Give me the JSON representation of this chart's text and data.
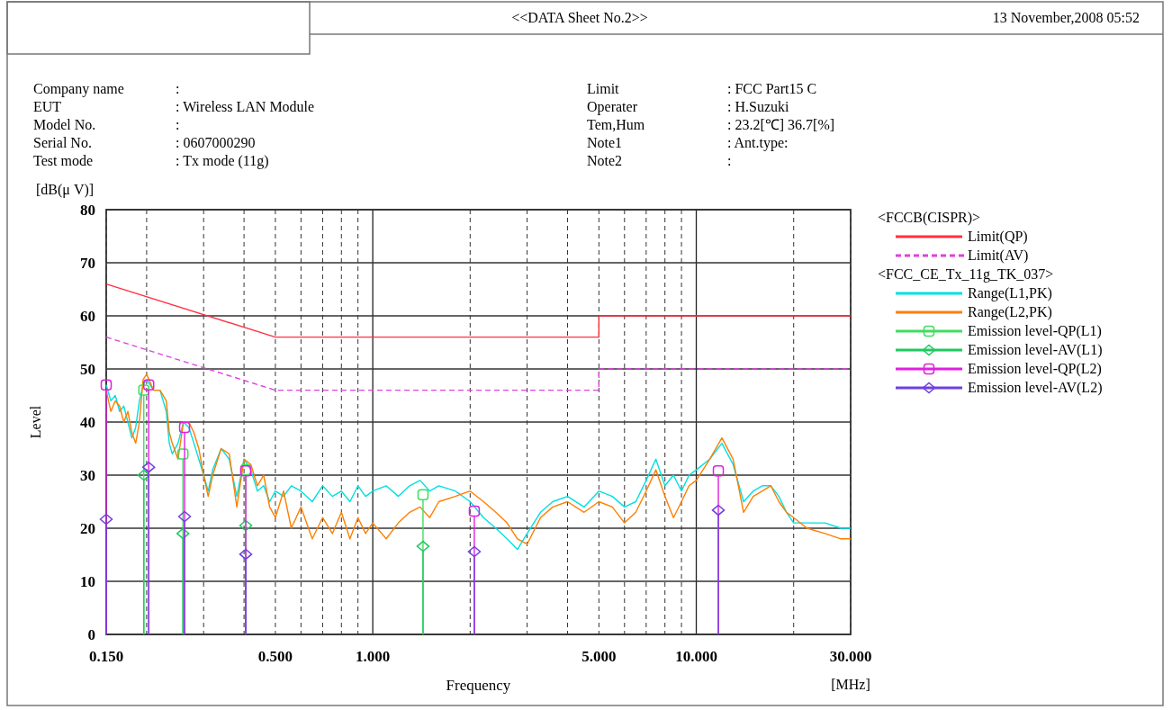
{
  "chart_data": {
    "type": "line",
    "title": "<<DATA Sheet No.2>>",
    "xlabel": "Frequency",
    "ylabel": "Level",
    "legend_title": "<FCCB(CISPR)>",
    "annotations": [
      "13 November,2008 05:52",
      "Company name",
      ":",
      "EUT",
      ": Wireless LAN Module",
      "Model No.",
      ":",
      "Serial No.",
      ": 0607000290",
      "Test mode",
      ": Tx mode (11g)",
      "Limit",
      ": FCC Part15 C",
      "Operater",
      ": H.Suzuki",
      "Tem,Hum",
      ": 23.2[℃] 36.7[%]",
      "Note1",
      ": Ant.type:",
      "Note2",
      ":",
      "[dB(μ V)]",
      "[MHz]",
      "<FCC_CE_Tx_11g_TK_037>"
    ],
    "log": "x",
    "grid": true,
    "legend": "right",
    "xlim": [
      0.15,
      30
    ],
    "xticks": [
      {
        "value": 0.15,
        "label": "0.150"
      },
      {
        "value": 0.2,
        "label": null
      },
      {
        "value": 0.3,
        "label": null
      },
      {
        "value": 0.4,
        "label": null
      },
      {
        "value": 0.5,
        "label": "0.500"
      },
      {
        "value": 0.6,
        "label": null
      },
      {
        "value": 0.7,
        "label": null
      },
      {
        "value": 0.8,
        "label": null
      },
      {
        "value": 0.9,
        "label": null
      },
      {
        "value": 1,
        "label": "1.000"
      },
      {
        "value": 2,
        "label": null
      },
      {
        "value": 3,
        "label": null
      },
      {
        "value": 4,
        "label": null
      },
      {
        "value": 5,
        "label": "5.000"
      },
      {
        "value": 6,
        "label": null
      },
      {
        "value": 7,
        "label": null
      },
      {
        "value": 8,
        "label": null
      },
      {
        "value": 9,
        "label": null
      },
      {
        "value": 10,
        "label": "10.000"
      },
      {
        "value": 20,
        "label": null
      },
      {
        "value": 30,
        "label": "30.000"
      }
    ],
    "ylim": [
      0,
      80
    ],
    "yticks": [
      0,
      10,
      20,
      30,
      40,
      50,
      60,
      70,
      80
    ],
    "series": [
      {
        "name": "Limit(QP)",
        "type": "line",
        "color": "#ff3040",
        "line_style": "solid",
        "marker": "none",
        "x": [
          0.15,
          0.5,
          5,
          5,
          30
        ],
        "values": [
          66,
          56,
          56,
          60,
          60
        ]
      },
      {
        "name": "Limit(AV)",
        "type": "line",
        "color": "#e040e0",
        "line_style": "dashed",
        "marker": "none",
        "x": [
          0.15,
          0.5,
          5,
          5,
          30
        ],
        "values": [
          56,
          46,
          46,
          50,
          50
        ]
      },
      {
        "name": "Range(L1,PK)",
        "type": "line",
        "color": "#00e0e0",
        "line_style": "solid",
        "marker": "none",
        "x": [
          0.15,
          0.155,
          0.16,
          0.165,
          0.17,
          0.175,
          0.18,
          0.185,
          0.19,
          0.195,
          0.2,
          0.21,
          0.22,
          0.23,
          0.235,
          0.24,
          0.25,
          0.26,
          0.27,
          0.28,
          0.29,
          0.3,
          0.31,
          0.32,
          0.34,
          0.36,
          0.38,
          0.4,
          0.42,
          0.44,
          0.46,
          0.48,
          0.5,
          0.53,
          0.56,
          0.6,
          0.65,
          0.7,
          0.75,
          0.8,
          0.85,
          0.9,
          0.95,
          1,
          1.1,
          1.2,
          1.3,
          1.4,
          1.5,
          1.6,
          1.8,
          2,
          2.2,
          2.4,
          2.6,
          2.8,
          3,
          3.3,
          3.6,
          4,
          4.5,
          5,
          5.5,
          6,
          6.5,
          7,
          7.5,
          8,
          8.5,
          9,
          9.5,
          10,
          11,
          12,
          13,
          14,
          15,
          16,
          17,
          18,
          19,
          20,
          22,
          25,
          28,
          30
        ],
        "values": [
          47,
          44,
          45,
          42,
          43,
          40,
          37,
          39,
          44,
          47,
          48,
          46,
          46,
          42,
          36,
          34,
          36,
          40,
          39,
          36,
          33,
          30,
          27,
          31,
          35,
          33,
          26,
          33,
          31,
          27,
          28,
          25,
          27,
          26,
          28,
          27,
          25,
          28,
          26,
          27,
          25,
          28,
          26,
          27,
          28,
          26,
          28,
          29,
          27,
          28,
          27,
          25,
          22,
          20,
          18,
          16,
          19,
          23,
          25,
          26,
          24,
          27,
          26,
          24,
          25,
          29,
          33,
          28,
          30,
          27,
          30,
          31,
          33,
          36,
          32,
          25,
          27,
          28,
          28,
          26,
          23,
          21,
          21,
          21,
          20,
          20
        ]
      },
      {
        "name": "Range(L2,PK)",
        "type": "line",
        "color": "#ff7f00",
        "line_style": "solid",
        "marker": "none",
        "x": [
          0.15,
          0.155,
          0.16,
          0.165,
          0.17,
          0.175,
          0.18,
          0.185,
          0.19,
          0.195,
          0.2,
          0.21,
          0.22,
          0.23,
          0.235,
          0.24,
          0.25,
          0.26,
          0.27,
          0.28,
          0.29,
          0.3,
          0.31,
          0.32,
          0.34,
          0.36,
          0.38,
          0.4,
          0.42,
          0.44,
          0.46,
          0.48,
          0.5,
          0.53,
          0.56,
          0.6,
          0.65,
          0.7,
          0.75,
          0.8,
          0.85,
          0.9,
          0.95,
          1,
          1.1,
          1.2,
          1.3,
          1.4,
          1.5,
          1.6,
          1.8,
          2,
          2.2,
          2.4,
          2.6,
          2.8,
          3,
          3.3,
          3.6,
          4,
          4.5,
          5,
          5.5,
          6,
          6.5,
          7,
          7.5,
          8,
          8.5,
          9,
          9.5,
          10,
          11,
          12,
          13,
          14,
          15,
          16,
          17,
          18,
          19,
          20,
          22,
          25,
          28,
          30
        ],
        "values": [
          46,
          42,
          44,
          43,
          40,
          42,
          38,
          36,
          40,
          48,
          49,
          46,
          46,
          44,
          38,
          36,
          33,
          40,
          40,
          38,
          35,
          30,
          26,
          30,
          35,
          34,
          24,
          33,
          32,
          28,
          30,
          24,
          22,
          27,
          20,
          24,
          18,
          22,
          19,
          23,
          18,
          22,
          19,
          21,
          18,
          21,
          23,
          24,
          22,
          25,
          26,
          27,
          25,
          23,
          21,
          18,
          17,
          22,
          24,
          25,
          23,
          25,
          24,
          21,
          23,
          27,
          31,
          26,
          22,
          25,
          28,
          29,
          33,
          37,
          33,
          23,
          26,
          27,
          28,
          25,
          23,
          22,
          20,
          19,
          18,
          18
        ]
      },
      {
        "name": "Emission level-QP(L1)",
        "type": "lollipop",
        "color": "#40dd60",
        "marker": "square",
        "line_style": "solid",
        "x": [
          0.196,
          0.259,
          0.405,
          1.43
        ],
        "values": [
          46,
          34,
          31,
          26.3
        ]
      },
      {
        "name": "Emission level-AV(L1)",
        "type": "lollipop",
        "color": "#20c860",
        "marker": "diamond",
        "line_style": "solid",
        "x": [
          0.196,
          0.259,
          0.405,
          1.43
        ],
        "values": [
          30,
          19,
          20.5,
          16.6
        ]
      },
      {
        "name": "Emission level-QP(L2)",
        "type": "lollipop",
        "color": "#e020e0",
        "marker": "square",
        "line_style": "solid",
        "x": [
          0.15,
          0.203,
          0.262,
          0.405,
          2.06,
          11.7
        ],
        "values": [
          47,
          47,
          39,
          30.8,
          23.2,
          30.8
        ]
      },
      {
        "name": "Emission level-AV(L2)",
        "type": "lollipop",
        "color": "#7040e0",
        "marker": "diamond",
        "line_style": "solid",
        "x": [
          0.15,
          0.203,
          0.262,
          0.405,
          2.06,
          11.7
        ],
        "values": [
          21.7,
          31.5,
          22.2,
          15.1,
          15.6,
          23.4
        ]
      }
    ]
  }
}
